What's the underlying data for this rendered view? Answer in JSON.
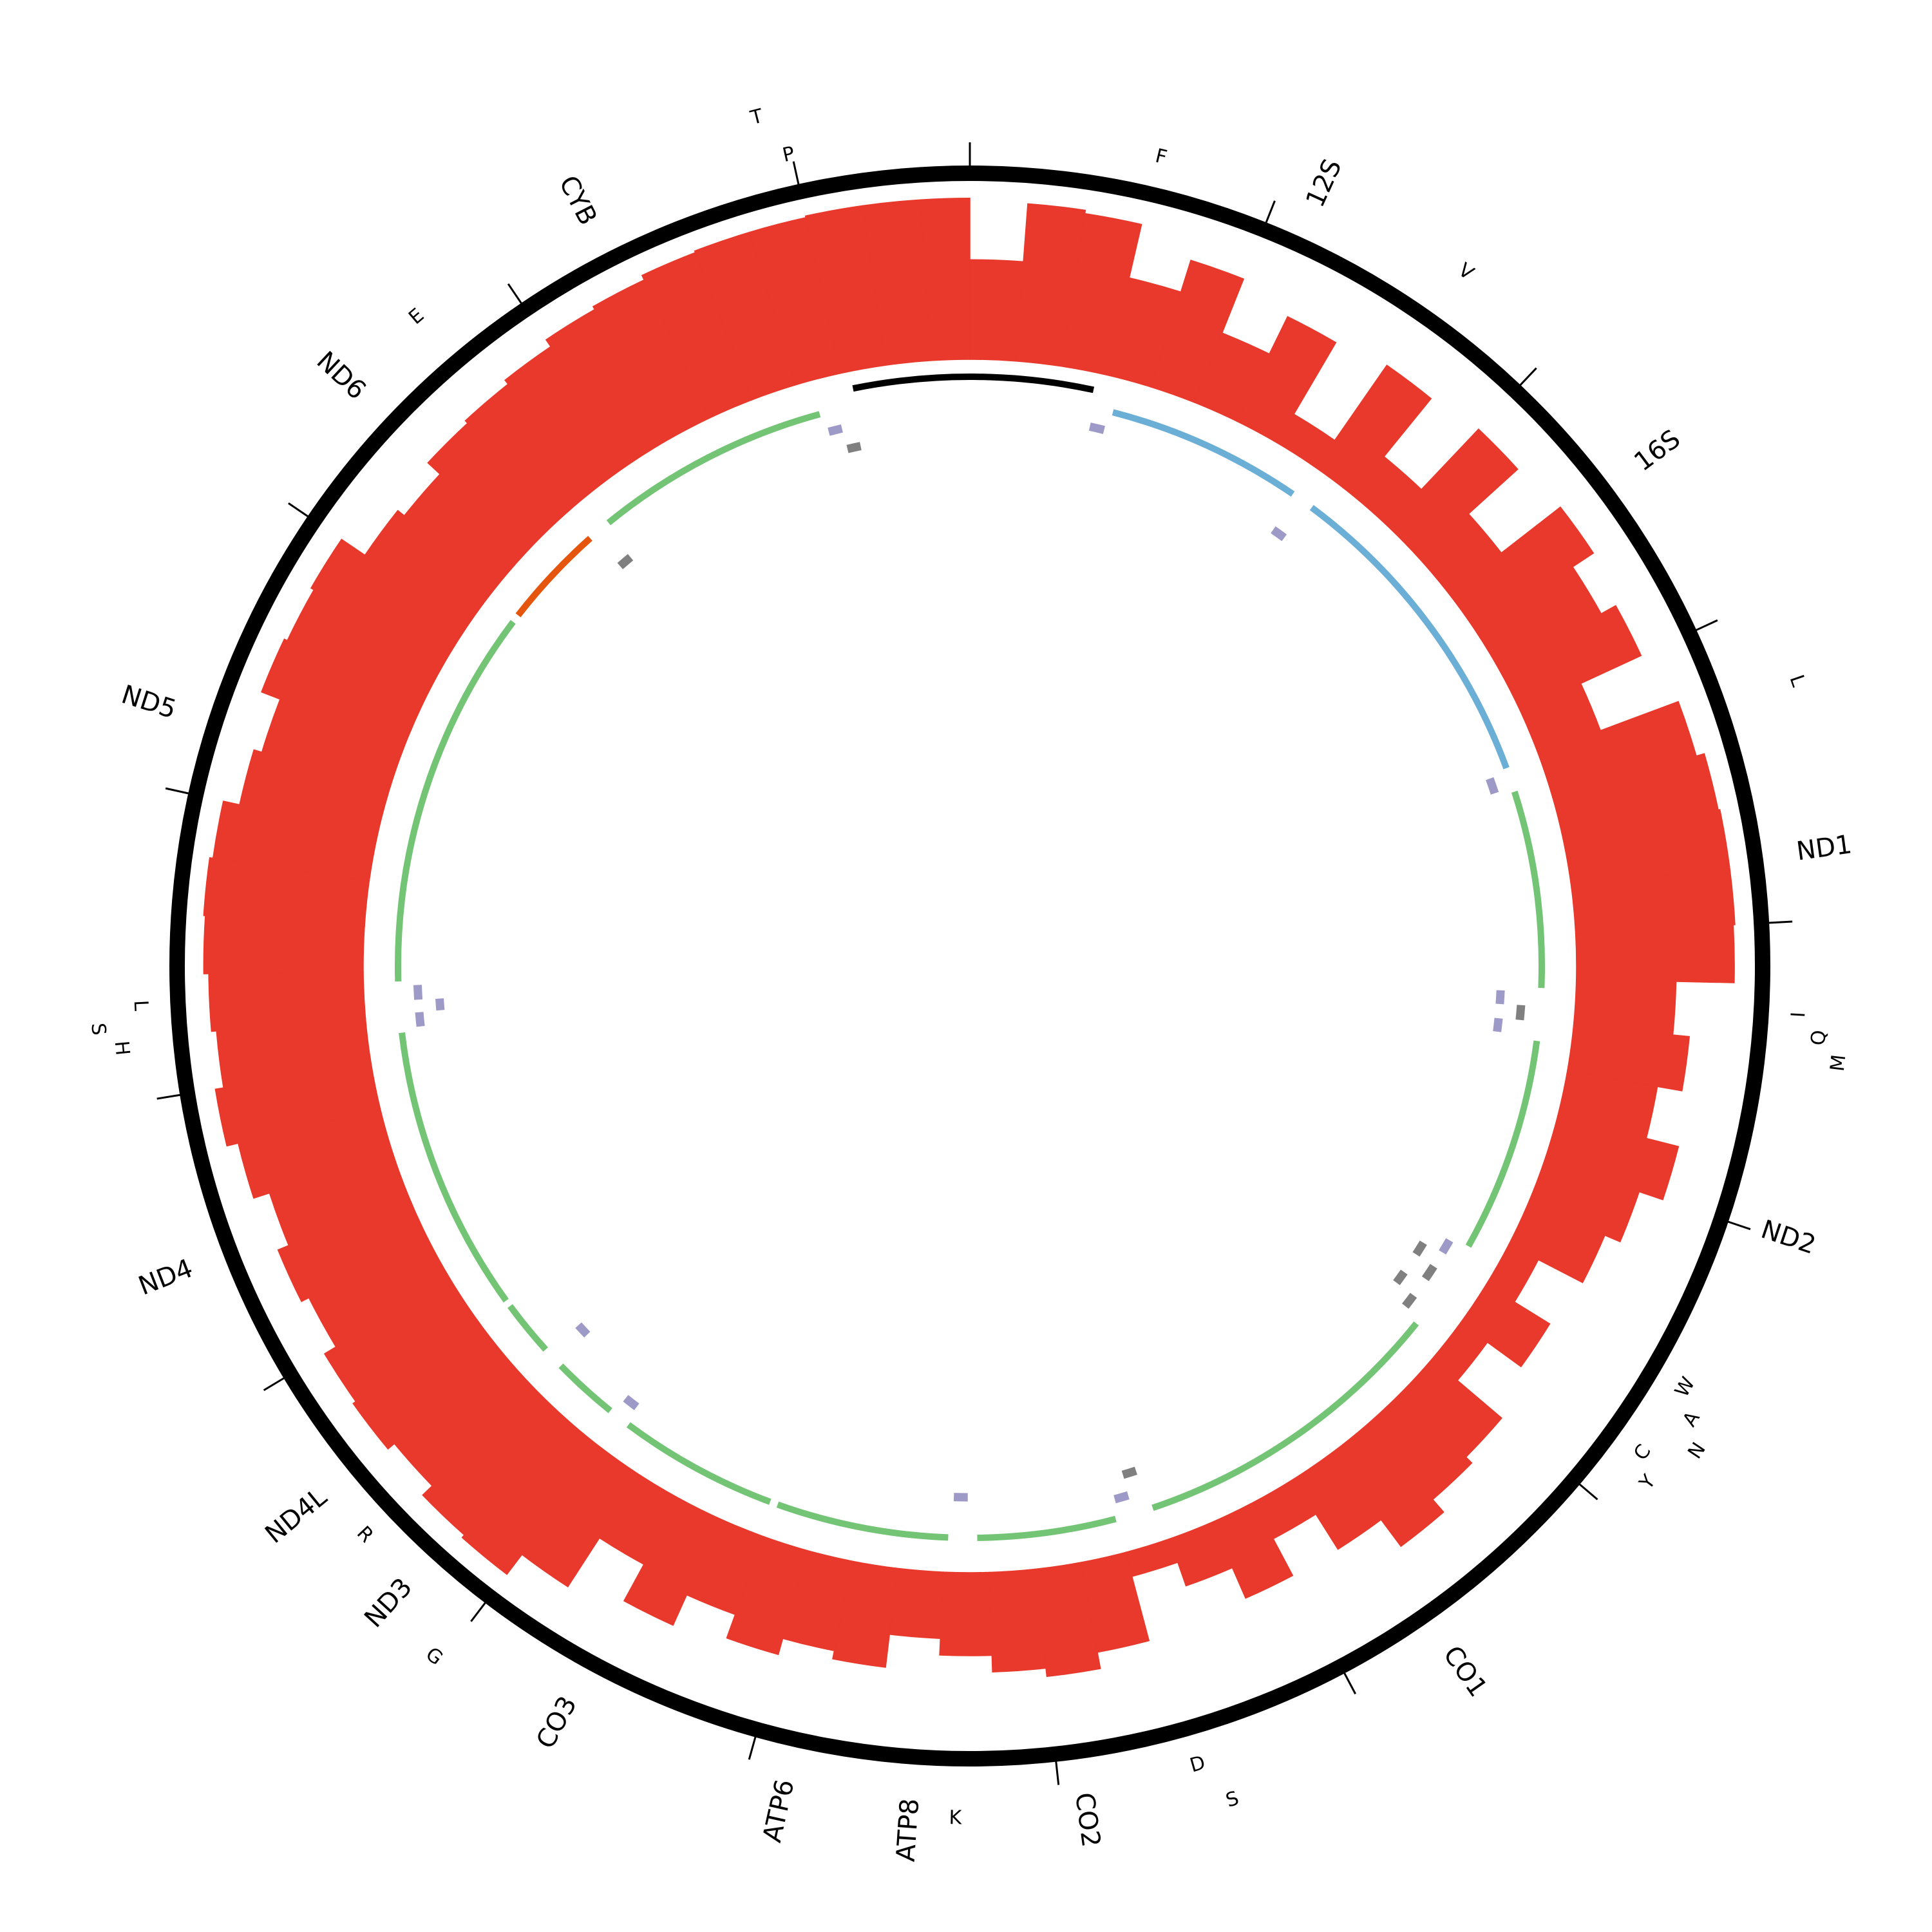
{
  "chart_data": {
    "type": "circos",
    "xlim": [
      0,
      16569
    ],
    "xticks": [
      0,
      1000,
      2000,
      3000,
      4000,
      5000,
      6000,
      7000,
      8000,
      9000,
      10000,
      11000,
      12000,
      13000,
      14000,
      15000,
      16000
    ],
    "coverage": {
      "color": "#e8392c",
      "ylim": [
        0,
        100
      ],
      "bins": [
        0,
        200,
        400,
        600,
        800,
        1000,
        1200,
        1400,
        1600,
        1800,
        2000,
        2200,
        2400,
        2600,
        2800,
        3000,
        3200,
        3400,
        3600,
        3800,
        4000,
        4200,
        4400,
        4600,
        4800,
        5000,
        5200,
        5400,
        5600,
        5800,
        6000,
        6200,
        6400,
        6600,
        6800,
        7000,
        7200,
        7400,
        7600,
        7800,
        8000,
        8200,
        8400,
        8600,
        8800,
        9000,
        9200,
        9400,
        9600,
        9800,
        10000,
        10200,
        10400,
        10600,
        10800,
        11000,
        11200,
        11400,
        11600,
        11800,
        12000,
        12200,
        12400,
        12600,
        12800,
        13000,
        13200,
        13400,
        13600,
        13800,
        14000,
        14200,
        14400,
        14600,
        14800,
        15000,
        15200,
        15400,
        15600,
        15800,
        16000,
        16200,
        16400,
        16569
      ],
      "values": [
        60,
        95,
        93,
        60,
        80,
        45,
        70,
        20,
        75,
        30,
        80,
        40,
        85,
        70,
        80,
        40,
        90,
        95,
        96,
        96,
        95,
        60,
        70,
        55,
        75,
        60,
        50,
        20,
        45,
        20,
        55,
        60,
        70,
        50,
        25,
        50,
        30,
        15,
        55,
        65,
        60,
        50,
        40,
        60,
        55,
        65,
        50,
        70,
        45,
        80,
        95,
        93,
        85,
        90,
        88,
        80,
        85,
        78,
        88,
        95,
        90,
        93,
        96,
        97,
        95,
        85,
        80,
        92,
        90,
        92,
        75,
        70,
        80,
        82,
        85,
        90,
        92,
        95,
        96,
        96,
        97,
        97,
        97
      ]
    },
    "features": [
      {
        "start": 16024,
        "end": 576,
        "color": "#000000"
      },
      {
        "name": "F",
        "start": 577,
        "end": 647,
        "color": "#9e9ac8"
      },
      {
        "name": "12S",
        "start": 648,
        "end": 1601,
        "color": "#6baed6"
      },
      {
        "name": "V",
        "start": 1602,
        "end": 1670,
        "color": "#9e9ac8"
      },
      {
        "name": "16S",
        "start": 1671,
        "end": 3229,
        "color": "#6baed6"
      },
      {
        "name": "L",
        "start": 3230,
        "end": 3304,
        "color": "#9e9ac8"
      },
      {
        "name": "ND1",
        "start": 3307,
        "end": 4262,
        "color": "#74c476"
      },
      {
        "name": "I",
        "start": 4263,
        "end": 4331,
        "color": "#9e9ac8"
      },
      {
        "name": "Q",
        "start": 4329,
        "end": 4400,
        "color": "#808080"
      },
      {
        "name": "M",
        "start": 4402,
        "end": 4469,
        "color": "#9e9ac8"
      },
      {
        "name": "ND2",
        "start": 4470,
        "end": 5511,
        "color": "#74c476"
      },
      {
        "name": "W",
        "start": 5512,
        "end": 5579,
        "color": "#9e9ac8"
      },
      {
        "name": "A",
        "start": 5587,
        "end": 5655,
        "color": "#808080"
      },
      {
        "name": "N",
        "start": 5657,
        "end": 5729,
        "color": "#808080"
      },
      {
        "name": "C",
        "start": 5761,
        "end": 5826,
        "color": "#808080"
      },
      {
        "name": "Y",
        "start": 5826,
        "end": 5891,
        "color": "#808080"
      },
      {
        "name": "CO1",
        "start": 5904,
        "end": 7445,
        "color": "#74c476"
      },
      {
        "name": "S",
        "start": 7446,
        "end": 7514,
        "color": "#808080"
      },
      {
        "name": "D",
        "start": 7518,
        "end": 7585,
        "color": "#9e9ac8"
      },
      {
        "name": "CO2",
        "start": 7586,
        "end": 8269,
        "color": "#74c476"
      },
      {
        "name": "K",
        "start": 8295,
        "end": 8364,
        "color": "#9e9ac8"
      },
      {
        "name": "ATP8",
        "start": 8366,
        "end": 8572,
        "color": "#74c476"
      },
      {
        "name": "ATP6",
        "start": 8527,
        "end": 9207,
        "color": "#74c476"
      },
      {
        "name": "CO3",
        "start": 9207,
        "end": 9990,
        "color": "#74c476"
      },
      {
        "name": "G",
        "start": 9991,
        "end": 10058,
        "color": "#9e9ac8"
      },
      {
        "name": "ND3",
        "start": 10059,
        "end": 10404,
        "color": "#74c476"
      },
      {
        "name": "R",
        "start": 10405,
        "end": 10469,
        "color": "#9e9ac8"
      },
      {
        "name": "ND4L",
        "start": 10470,
        "end": 10766,
        "color": "#74c476"
      },
      {
        "name": "ND4",
        "start": 10760,
        "end": 12137,
        "color": "#74c476"
      },
      {
        "name": "H",
        "start": 12138,
        "end": 12206,
        "color": "#9e9ac8"
      },
      {
        "name": "S",
        "start": 12207,
        "end": 12265,
        "color": "#9e9ac8"
      },
      {
        "name": "L",
        "start": 12266,
        "end": 12336,
        "color": "#9e9ac8"
      },
      {
        "name": "ND5",
        "start": 12337,
        "end": 14148,
        "color": "#74c476"
      },
      {
        "name": "ND6",
        "start": 14149,
        "end": 14673,
        "color": "#e6550d"
      },
      {
        "name": "E",
        "start": 14674,
        "end": 14742,
        "color": "#808080"
      },
      {
        "name": "CYB",
        "start": 14747,
        "end": 15887,
        "color": "#74c476"
      },
      {
        "name": "T",
        "start": 15888,
        "end": 15953,
        "color": "#9e9ac8"
      },
      {
        "name": "P",
        "start": 15956,
        "end": 16023,
        "color": "#808080"
      }
    ]
  }
}
